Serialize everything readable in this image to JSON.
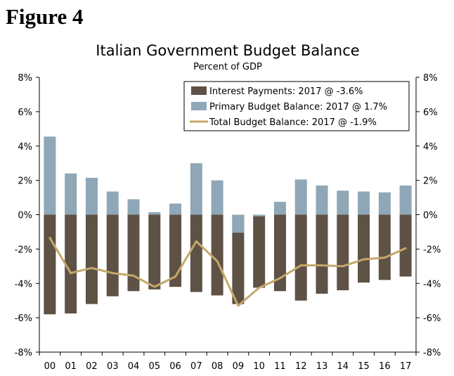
{
  "figure_label": "Figure 4",
  "colors": {
    "interest": "#5e5145",
    "primary": "#8fa7b6",
    "total": "#c4a86a",
    "axis": "#000000"
  },
  "chart_data": {
    "type": "bar",
    "title": "Italian Government Budget Balance",
    "subtitle": "Percent of GDP",
    "xlabel": "",
    "ylabel": "Percent of GDP",
    "categories": [
      "00",
      "01",
      "02",
      "03",
      "04",
      "05",
      "06",
      "07",
      "08",
      "09",
      "10",
      "11",
      "12",
      "13",
      "14",
      "15",
      "16",
      "17"
    ],
    "ylim": [
      -8,
      8
    ],
    "yticks": [
      -8,
      -6,
      -4,
      -2,
      0,
      2,
      4,
      6,
      8
    ],
    "ytick_labels_left": [
      "-8%",
      "-6%",
      "-4%",
      "-2%",
      "0%",
      "2%",
      "4%",
      "6%",
      "8%"
    ],
    "ytick_labels_right": [
      "-8%",
      "-6%",
      "-4%",
      "-2%",
      "0%",
      "2%",
      "4%",
      "6%",
      "8%"
    ],
    "legend_position": "top-right",
    "series": [
      {
        "name": "Interest Payments: 2017 @ -3.6%",
        "type": "bar",
        "values": [
          -5.8,
          -5.75,
          -5.2,
          -4.75,
          -4.45,
          -4.35,
          -4.2,
          -4.5,
          -4.7,
          -5.2,
          -4.25,
          -4.45,
          -5.0,
          -4.6,
          -4.4,
          -3.95,
          -3.8,
          -3.6
        ]
      },
      {
        "name": "Primary Budget Balance: 2017 @ 1.7%",
        "type": "bar",
        "values": [
          4.55,
          2.4,
          2.15,
          1.35,
          0.9,
          0.15,
          0.65,
          3.0,
          2.0,
          -1.05,
          -0.1,
          0.75,
          2.05,
          1.7,
          1.4,
          1.35,
          1.3,
          1.7
        ]
      },
      {
        "name": "Total Budget Balance: 2017 @ -1.9%",
        "type": "line",
        "values": [
          -1.35,
          -3.4,
          -3.1,
          -3.4,
          -3.55,
          -4.2,
          -3.6,
          -1.55,
          -2.7,
          -5.3,
          -4.25,
          -3.7,
          -2.95,
          -2.95,
          -3.0,
          -2.6,
          -2.5,
          -1.95
        ]
      }
    ]
  }
}
